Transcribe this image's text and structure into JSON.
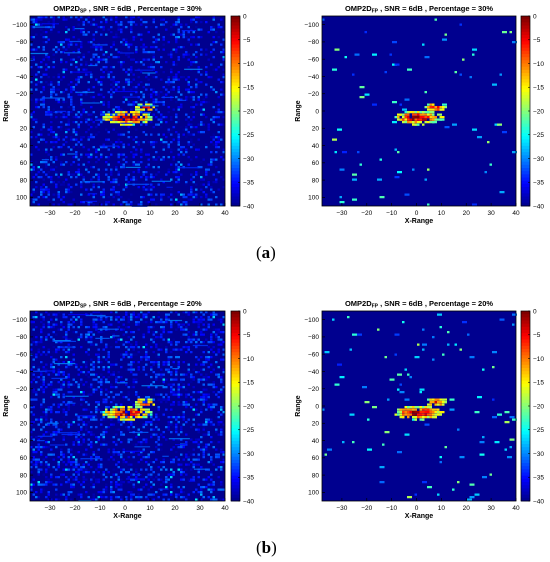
{
  "panels": [
    {
      "id": "a",
      "label": "a"
    },
    {
      "id": "b",
      "label": "b"
    }
  ],
  "chart_data": [
    {
      "type": "heatmap",
      "title_main": "OMP2D",
      "title_sub": "SP",
      "title_rest": " , SNR = 6dB , Percentage = 30%",
      "xlabel": "X-Range",
      "ylabel": "Range",
      "xticks": [
        -30,
        -20,
        -10,
        0,
        10,
        20,
        30,
        40
      ],
      "yticks": [
        -100,
        -80,
        -60,
        -40,
        -20,
        0,
        20,
        40,
        60,
        80,
        100
      ],
      "xlim": [
        -38,
        40
      ],
      "ylim": [
        -110,
        110
      ],
      "clim": [
        -40,
        0
      ],
      "cticks": [
        0,
        -5,
        -10,
        -15,
        -20,
        -25,
        -30,
        -35,
        -40
      ],
      "noise_density": 0.28,
      "clutter": "dense"
    },
    {
      "type": "heatmap",
      "title_main": "OMP2D",
      "title_sub": "FP",
      "title_rest": " , SNR = 6dB , Percentage = 30%",
      "xlabel": "X-Range",
      "ylabel": "Range",
      "xticks": [
        -30,
        -20,
        -10,
        0,
        10,
        20,
        30,
        40
      ],
      "yticks": [
        -100,
        -80,
        -60,
        -40,
        -20,
        0,
        20,
        40,
        60,
        80,
        100
      ],
      "xlim": [
        -38,
        40
      ],
      "ylim": [
        -110,
        110
      ],
      "clim": [
        -40,
        0
      ],
      "cticks": [
        0,
        -5,
        -10,
        -15,
        -20,
        -25,
        -30,
        -35,
        -40
      ],
      "noise_density": 0.012,
      "clutter": "sparse"
    },
    {
      "type": "heatmap",
      "title_main": "OMP2D",
      "title_sub": "SP",
      "title_rest": " , SNR = 6dB , Percentage = 20%",
      "xlabel": "X-Range",
      "ylabel": "Range",
      "xticks": [
        -30,
        -20,
        -10,
        0,
        10,
        20,
        30,
        40
      ],
      "yticks": [
        -100,
        -80,
        -60,
        -40,
        -20,
        0,
        20,
        40,
        60,
        80,
        100
      ],
      "xlim": [
        -38,
        40
      ],
      "ylim": [
        -110,
        110
      ],
      "clim": [
        -40,
        0
      ],
      "cticks": [
        0,
        -5,
        -10,
        -15,
        -20,
        -25,
        -30,
        -35,
        -40
      ],
      "noise_density": 0.34,
      "clutter": "dense"
    },
    {
      "type": "heatmap",
      "title_main": "OMP2D",
      "title_sub": "FP",
      "title_rest": " , SNR = 6dB , Percentage = 20%",
      "xlabel": "X-Range",
      "ylabel": "Range",
      "xticks": [
        -30,
        -20,
        -10,
        0,
        10,
        20,
        30,
        40
      ],
      "yticks": [
        -100,
        -80,
        -60,
        -40,
        -20,
        0,
        20,
        40,
        60,
        80,
        100
      ],
      "xlim": [
        -38,
        40
      ],
      "ylim": [
        -110,
        110
      ],
      "clim": [
        -40,
        0
      ],
      "cticks": [
        0,
        -5,
        -10,
        -15,
        -20,
        -25,
        -30,
        -35,
        -40
      ],
      "noise_density": 0.018,
      "clutter": "sparse"
    }
  ],
  "colors": {
    "background": "#00008f",
    "colormap": "jet"
  }
}
